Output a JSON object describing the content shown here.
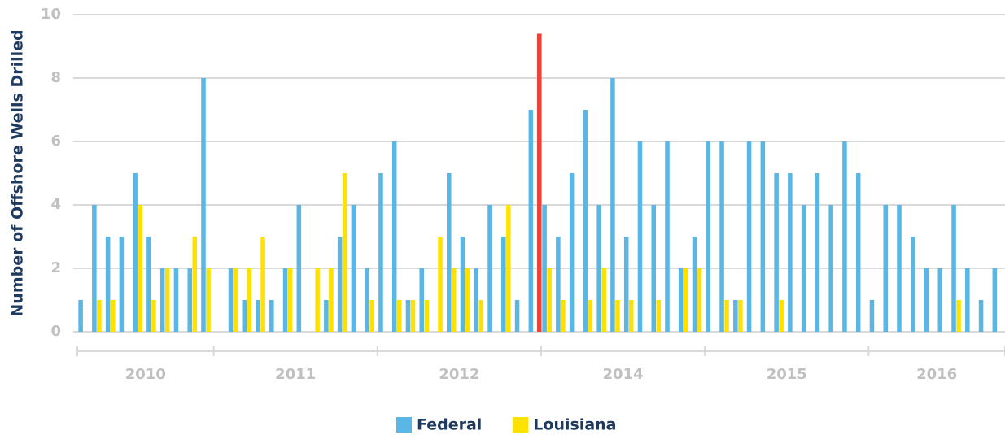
{
  "chart_data": {
    "type": "bar",
    "y_label": "Number of Offshore Wells Drilled",
    "ylim": [
      0,
      10
    ],
    "yticks": [
      0,
      2,
      4,
      6,
      8,
      10
    ],
    "grid": true,
    "categories": [
      null,
      null,
      null,
      null,
      null,
      null,
      null,
      null,
      null,
      null,
      null,
      null,
      null,
      null,
      null,
      null,
      null,
      null,
      null,
      null,
      null,
      null,
      null,
      null,
      null,
      null,
      null,
      null,
      null,
      null,
      null,
      null,
      null,
      null,
      null,
      null,
      null,
      null,
      null,
      null,
      null,
      null,
      null,
      null,
      null,
      null,
      null,
      null,
      null,
      null,
      null,
      null,
      null,
      null,
      null,
      null,
      null,
      null,
      null,
      null,
      null,
      null,
      null,
      null,
      null,
      null,
      null,
      null
    ],
    "x_groups": [
      {
        "label": "2010",
        "count": 10
      },
      {
        "label": "2011",
        "count": 12
      },
      {
        "label": "2012",
        "count": 12
      },
      {
        "label": "2014",
        "count": 12
      },
      {
        "label": "2015",
        "count": 12
      },
      {
        "label": "2016",
        "count": 10
      }
    ],
    "series": [
      {
        "name": "Federal",
        "color": "#5ab6e4",
        "values": [
          1,
          4,
          3,
          3,
          5,
          3,
          2,
          2,
          2,
          8,
          0,
          2,
          1,
          1,
          1,
          2,
          4,
          0,
          1,
          3,
          4,
          2,
          5,
          6,
          1,
          2,
          0,
          5,
          3,
          2,
          4,
          3,
          1,
          7,
          4,
          3,
          5,
          7,
          4,
          8,
          3,
          6,
          4,
          6,
          2,
          3,
          6,
          6,
          1,
          6,
          6,
          5,
          5,
          4,
          5,
          4,
          6,
          5,
          1,
          4,
          4,
          3,
          2,
          2,
          4,
          2,
          1,
          2
        ]
      },
      {
        "name": "Louisiana",
        "color": "#ffe100",
        "values": [
          0,
          1,
          1,
          0,
          4,
          1,
          2,
          0,
          3,
          2,
          0,
          2,
          2,
          3,
          0,
          2,
          0,
          2,
          2,
          5,
          0,
          1,
          0,
          1,
          1,
          1,
          3,
          2,
          2,
          1,
          0,
          4,
          0,
          0,
          2,
          1,
          0,
          1,
          2,
          1,
          1,
          0,
          1,
          0,
          2,
          2,
          0,
          1,
          1,
          0,
          0,
          1,
          0,
          0,
          0,
          0,
          0,
          0,
          0,
          0,
          0,
          0,
          0,
          0,
          1,
          0,
          0,
          0
        ]
      }
    ],
    "highlight": {
      "index": 33,
      "value": 9.4,
      "color": "#ee4136"
    },
    "legend": "bottom"
  }
}
